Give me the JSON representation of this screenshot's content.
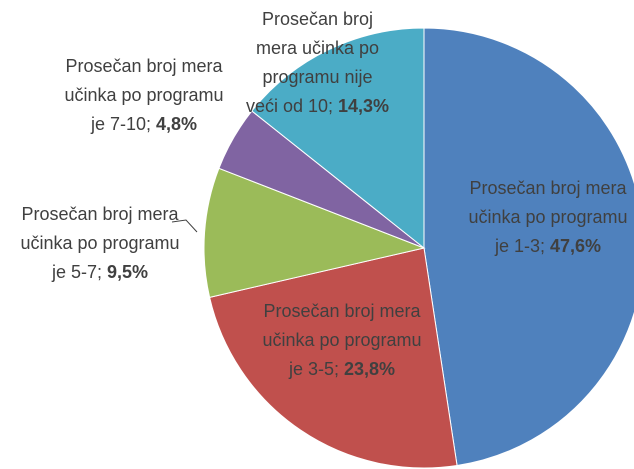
{
  "chart_data": {
    "type": "pie",
    "categories": [
      "Prosečan broj mera učinka po programu je 1-3",
      "Prosečan broj mera učinka po programu je 3-5",
      "Prosečan broj mera učinka po programu je 5-7",
      "Prosečan broj mera učinka po programu je 7-10",
      "Prosečan broj mera učinka po programu nije veći od 10"
    ],
    "values": [
      47.6,
      23.8,
      9.5,
      4.8,
      14.3
    ],
    "value_labels": [
      "47,6%",
      "23,8%",
      "9,5%",
      "4,8%",
      "14,3%"
    ],
    "colors": [
      "#4F81BD",
      "#C0504D",
      "#9BBB59",
      "#8064A2",
      "#4BACC6"
    ]
  }
}
